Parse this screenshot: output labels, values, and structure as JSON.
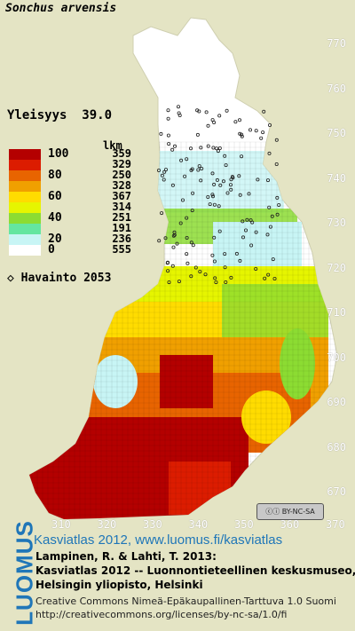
{
  "species": "Sonchus arvensis",
  "frequency": {
    "label": "Yleisyys",
    "value": "39.0"
  },
  "legend": {
    "count_header": "lkm",
    "classes": [
      {
        "value": "100",
        "count": "359",
        "color": "#b40000"
      },
      {
        "value": "",
        "count": "329",
        "color": "#dc1c00"
      },
      {
        "value": "80",
        "count": "250",
        "color": "#e86400"
      },
      {
        "value": "",
        "count": "328",
        "color": "#f0a000"
      },
      {
        "value": "60",
        "count": "367",
        "color": "#ffdc00"
      },
      {
        "value": "",
        "count": "314",
        "color": "#e6f500"
      },
      {
        "value": "40",
        "count": "251",
        "color": "#8cdc32"
      },
      {
        "value": "",
        "count": "191",
        "color": "#64e6a0"
      },
      {
        "value": "20",
        "count": "236",
        "color": "#c8f5f5"
      },
      {
        "value": "0",
        "count": "555",
        "color": "#ffffff"
      }
    ]
  },
  "observations": {
    "label": "Havainto",
    "value": "2053"
  },
  "y_ticks": [
    "770",
    "760",
    "750",
    "740",
    "730",
    "720",
    "710",
    "700",
    "690",
    "680",
    "670"
  ],
  "x_ticks": [
    "310",
    "320",
    "330",
    "340",
    "350",
    "360",
    "370"
  ],
  "license_badge": "BY-NC-SA",
  "logo": "LUOMUS",
  "footer": {
    "title": "Kasviatlas 2012, www.luomus.fi/kasviatlas",
    "citation_line1": "Lampinen, R. & Lahti, T. 2013:",
    "citation_line2": "Kasviatlas 2012 -- Luonnontieteellinen keskusmuseo,",
    "citation_line3": "Helsingin yliopisto, Helsinki",
    "license_line1": "Creative Commons Nimeä-Epäkaupallinen-Tarttuva 1.0 Suomi",
    "license_line2": "http://creativecommons.org/licenses/by-nc-sa/1.0/fi"
  }
}
